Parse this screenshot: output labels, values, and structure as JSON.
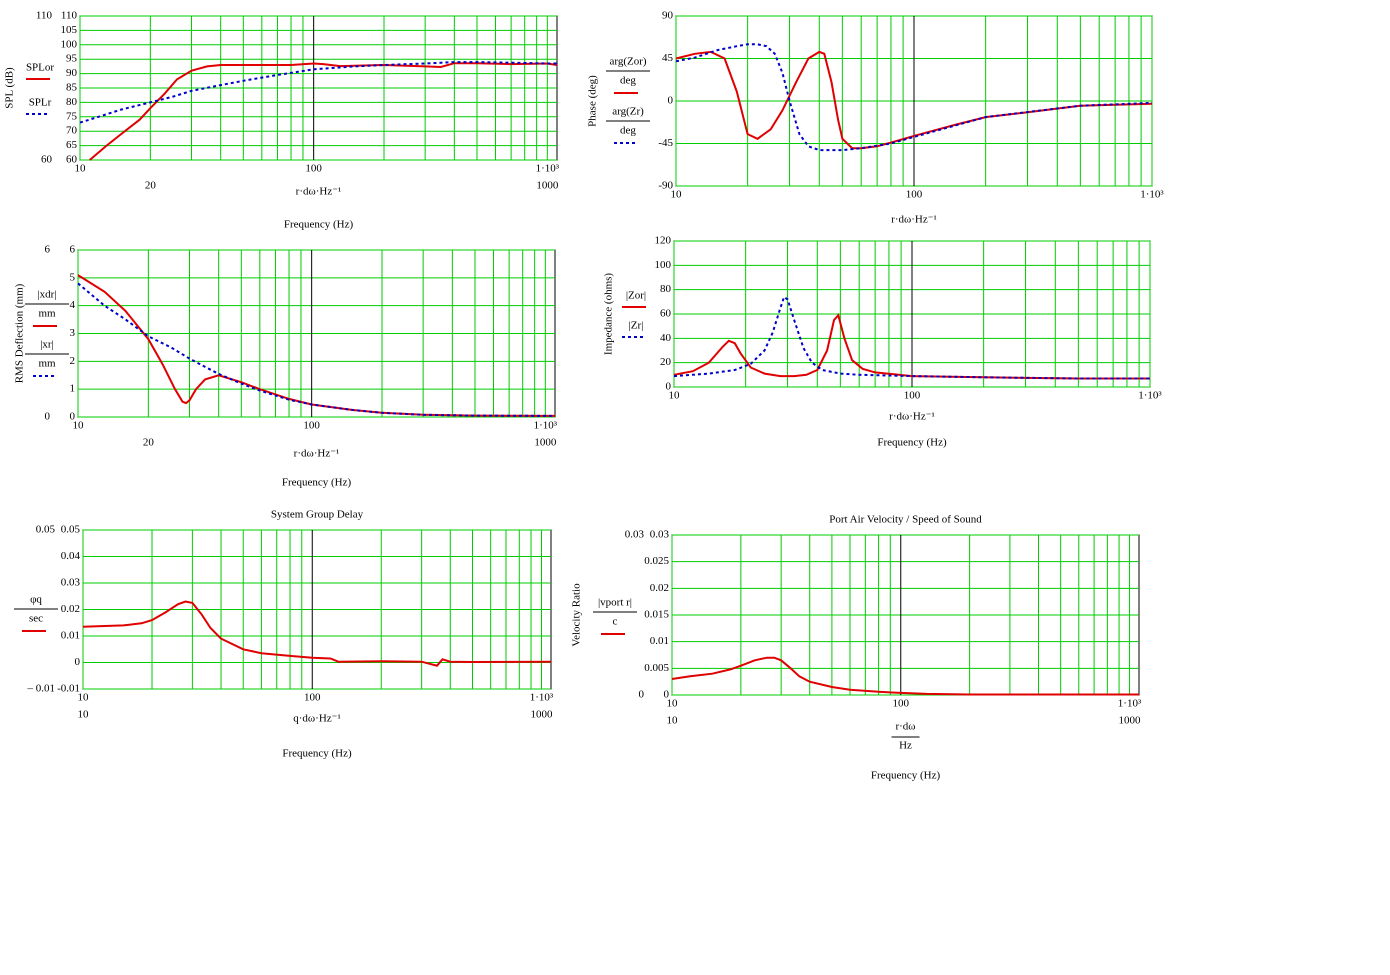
{
  "chart_data": [
    {
      "type": "line",
      "xscale": "log",
      "grid": true,
      "minor_grid": true,
      "ylabel": "SPL (dB)",
      "xlabel": "r·dω·Hz⁻¹",
      "xtitle": "Frequency (Hz)",
      "xlim": [
        10,
        1100
      ],
      "xticks": [
        10,
        100,
        {
          "value": 1000,
          "label": "1·10³"
        }
      ],
      "ylim": [
        60,
        110
      ],
      "yticks": [
        60,
        65,
        70,
        75,
        80,
        85,
        90,
        95,
        100,
        105,
        110
      ],
      "ymarkers": [
        110,
        60
      ],
      "xmarkers": [
        20,
        1000
      ],
      "series": [
        {
          "name": "SPLor",
          "color": "#e00000",
          "dash": false,
          "x": [
            11,
            13,
            15,
            18,
            20,
            23,
            26,
            30,
            35,
            40,
            50,
            60,
            80,
            100,
            110,
            130,
            200,
            300,
            350,
            400,
            500,
            700,
            1000,
            1100
          ],
          "values": [
            60,
            65,
            69,
            74,
            78,
            83,
            88,
            91,
            92.5,
            93,
            93,
            93,
            93,
            93.5,
            93.3,
            92.6,
            93,
            92.5,
            92.3,
            93.6,
            93.6,
            93.3,
            93.5,
            93
          ]
        },
        {
          "name": "SPLr",
          "color": "#0000cc",
          "dash": true,
          "x": [
            10,
            12,
            15,
            20,
            25,
            30,
            40,
            50,
            70,
            100,
            150,
            200,
            300,
            400,
            500,
            700,
            1000,
            1100
          ],
          "values": [
            73,
            75,
            77.5,
            80,
            82,
            84,
            86,
            87.5,
            89.5,
            91.5,
            92.5,
            93,
            93.5,
            94,
            94,
            93.8,
            93.5,
            93.5
          ]
        }
      ]
    },
    {
      "type": "line",
      "xscale": "log",
      "grid": true,
      "minor_grid": true,
      "ylabel": "Phase (deg)",
      "xlabel": "r·dω·Hz⁻¹",
      "xlim": [
        10,
        1000
      ],
      "xticks": [
        10,
        100,
        {
          "value": 1000,
          "label": "1·10³"
        }
      ],
      "ylim": [
        -90,
        90
      ],
      "yticks": [
        -90,
        -45,
        0,
        45,
        90
      ],
      "series": [
        {
          "name": "arg(Zor)",
          "unit": "deg",
          "color": "#e00000",
          "dash": false,
          "x": [
            10,
            12,
            14,
            16,
            18,
            20,
            22,
            25,
            28,
            32,
            36,
            40,
            42,
            45,
            48,
            50,
            55,
            60,
            70,
            80,
            100,
            150,
            200,
            300,
            500,
            700,
            1000
          ],
          "values": [
            45,
            50,
            52,
            45,
            10,
            -35,
            -40,
            -30,
            -10,
            20,
            45,
            52,
            50,
            20,
            -20,
            -40,
            -50,
            -50,
            -48,
            -44,
            -37,
            -25,
            -17,
            -12,
            -5,
            -4,
            -3
          ]
        },
        {
          "name": "arg(Zr)",
          "unit": "deg",
          "color": "#0000cc",
          "dash": true,
          "x": [
            10,
            12,
            15,
            18,
            20,
            22,
            24,
            26,
            28,
            30,
            33,
            36,
            40,
            50,
            60,
            80,
            100,
            200,
            500,
            1000
          ],
          "values": [
            42,
            46,
            54,
            58,
            60,
            60,
            58,
            50,
            30,
            0,
            -35,
            -48,
            -52,
            -52,
            -50,
            -45,
            -38,
            -17,
            -5,
            -2
          ]
        }
      ]
    },
    {
      "type": "line",
      "xscale": "log",
      "grid": true,
      "minor_grid": true,
      "ylabel": "RMS Deflection (mm)",
      "xlabel": "r·dω·Hz⁻¹",
      "xtitle": "Frequency (Hz)",
      "xlim": [
        10,
        1100
      ],
      "xticks": [
        10,
        100,
        {
          "value": 1000,
          "label": "1·10³"
        }
      ],
      "ylim": [
        0,
        6
      ],
      "yticks": [
        0,
        1,
        2,
        3,
        4,
        5,
        6
      ],
      "ymarkers": [
        6,
        0
      ],
      "xmarkers": [
        20,
        1000
      ],
      "series": [
        {
          "name": "|xdr|",
          "unit": "mm",
          "color": "#e00000",
          "dash": false,
          "x": [
            10,
            13,
            16,
            20,
            23,
            26,
            28,
            29,
            30,
            32,
            35,
            40,
            50,
            60,
            80,
            100,
            150,
            200,
            300,
            500,
            1100
          ],
          "values": [
            5.1,
            4.5,
            3.8,
            2.8,
            1.9,
            1.0,
            0.55,
            0.5,
            0.6,
            1.0,
            1.35,
            1.5,
            1.25,
            1.0,
            0.65,
            0.45,
            0.25,
            0.15,
            0.08,
            0.05,
            0.04
          ]
        },
        {
          "name": "|xr|",
          "unit": "mm",
          "color": "#0000cc",
          "dash": true,
          "x": [
            10,
            13,
            16,
            20,
            25,
            30,
            35,
            40,
            50,
            60,
            80,
            100,
            150,
            200,
            300,
            500,
            1100
          ],
          "values": [
            4.8,
            4.0,
            3.5,
            2.9,
            2.5,
            2.1,
            1.8,
            1.55,
            1.2,
            0.95,
            0.62,
            0.45,
            0.25,
            0.15,
            0.08,
            0.05,
            0.04
          ]
        }
      ]
    },
    {
      "type": "line",
      "xscale": "log",
      "grid": true,
      "minor_grid": true,
      "ylabel": "Impedance (ohms)",
      "xlabel": "r·dω·Hz⁻¹",
      "xtitle": "Frequency (Hz)",
      "xlim": [
        10,
        1000
      ],
      "xticks": [
        10,
        100,
        {
          "value": 1000,
          "label": "1·10³"
        }
      ],
      "ylim": [
        0,
        120
      ],
      "yticks": [
        0,
        20,
        40,
        60,
        80,
        100,
        120
      ],
      "series": [
        {
          "name": "|Zor|",
          "color": "#e00000",
          "dash": false,
          "x": [
            10,
            12,
            14,
            16,
            17,
            18,
            19,
            21,
            24,
            28,
            32,
            36,
            40,
            44,
            47,
            49,
            52,
            56,
            62,
            70,
            100,
            200,
            500,
            1000
          ],
          "values": [
            10,
            13,
            20,
            33,
            38,
            36,
            28,
            16,
            11,
            9,
            9,
            10,
            14,
            30,
            55,
            59,
            40,
            22,
            15,
            12,
            9,
            8,
            7,
            7
          ]
        },
        {
          "name": "|Zr|",
          "color": "#0000cc",
          "dash": true,
          "x": [
            10,
            14,
            18,
            21,
            24,
            26,
            28,
            29,
            30,
            32,
            35,
            38,
            42,
            50,
            60,
            100,
            200,
            500,
            1000
          ],
          "values": [
            9,
            11,
            14,
            19,
            30,
            45,
            65,
            74,
            72,
            55,
            32,
            20,
            14,
            11,
            10,
            9,
            8,
            7,
            7
          ]
        }
      ]
    },
    {
      "type": "line",
      "xscale": "log",
      "grid": true,
      "minor_grid": true,
      "title": "System Group Delay",
      "xlabel": "q·dω·Hz⁻¹",
      "xtitle": "Frequency (Hz)",
      "xlim": [
        10,
        1100
      ],
      "xticks": [
        10,
        100,
        {
          "value": 1000,
          "label": "1·10³"
        }
      ],
      "ylim": [
        -0.01,
        0.05
      ],
      "yticks": [
        {
          "value": -0.01,
          "label": "-0.01"
        },
        0,
        0.01,
        0.02,
        0.03,
        0.04,
        0.05
      ],
      "ymarkers": [
        0.05,
        {
          "value": -0.01,
          "label": "– 0.01"
        }
      ],
      "xmarkers": [
        10,
        1000
      ],
      "series": [
        {
          "name": "φq",
          "unit": "sec",
          "color": "#e00000",
          "dash": false,
          "x": [
            10,
            15,
            18,
            20,
            23,
            26,
            28,
            30,
            33,
            36,
            40,
            50,
            60,
            80,
            100,
            120,
            130,
            200,
            300,
            350,
            370,
            400,
            500,
            1100
          ],
          "values": [
            0.0135,
            0.014,
            0.0148,
            0.016,
            0.019,
            0.022,
            0.023,
            0.0225,
            0.018,
            0.013,
            0.009,
            0.005,
            0.0035,
            0.0025,
            0.0018,
            0.0015,
            0.0003,
            0.0005,
            0.0003,
            -0.0012,
            0.0012,
            0.0003,
            0.0002,
            0.0003
          ]
        }
      ]
    },
    {
      "type": "line",
      "xscale": "log",
      "grid": true,
      "minor_grid": true,
      "title": "Port Air Velocity / Speed of Sound",
      "ylabel": "Velocity Ratio",
      "xlabel": "r·dω",
      "xlabel_unit": "Hz",
      "xtitle": "Frequency (Hz)",
      "xlim": [
        10,
        1100
      ],
      "xticks": [
        10,
        100,
        {
          "value": 1000,
          "label": "1·10³"
        }
      ],
      "ylim": [
        0,
        0.03
      ],
      "yticks": [
        0,
        0.005,
        0.01,
        0.015,
        0.02,
        0.025,
        0.03
      ],
      "ymarkers": [
        0.03,
        0
      ],
      "xmarkers": [
        10,
        1000
      ],
      "series": [
        {
          "name": "|vport r|",
          "unit": "c",
          "color": "#e00000",
          "dash": false,
          "x": [
            10,
            12,
            15,
            18,
            20,
            23,
            26,
            28,
            30,
            33,
            36,
            40,
            50,
            60,
            80,
            100,
            130,
            200,
            500,
            1100
          ],
          "values": [
            0.003,
            0.0035,
            0.004,
            0.0048,
            0.0055,
            0.0065,
            0.007,
            0.007,
            0.0065,
            0.005,
            0.0035,
            0.0025,
            0.0015,
            0.001,
            0.0006,
            0.0004,
            0.0002,
            0.0001,
            0.0001,
            0.0001
          ]
        }
      ]
    }
  ]
}
